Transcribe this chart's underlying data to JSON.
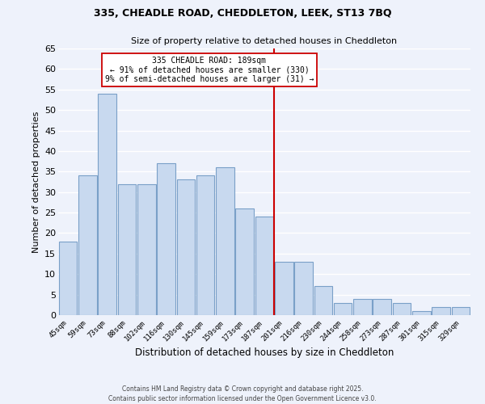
{
  "title1": "335, CHEADLE ROAD, CHEDDLETON, LEEK, ST13 7BQ",
  "title2": "Size of property relative to detached houses in Cheddleton",
  "xlabel": "Distribution of detached houses by size in Cheddleton",
  "ylabel": "Number of detached properties",
  "categories": [
    "45sqm",
    "59sqm",
    "73sqm",
    "88sqm",
    "102sqm",
    "116sqm",
    "130sqm",
    "145sqm",
    "159sqm",
    "173sqm",
    "187sqm",
    "201sqm",
    "216sqm",
    "230sqm",
    "244sqm",
    "258sqm",
    "273sqm",
    "287sqm",
    "301sqm",
    "315sqm",
    "329sqm"
  ],
  "values": [
    18,
    34,
    54,
    32,
    32,
    37,
    33,
    34,
    36,
    26,
    24,
    13,
    13,
    7,
    3,
    4,
    4,
    3,
    1,
    2,
    2
  ],
  "bar_color": "#c8d9ef",
  "bar_edge_color": "#7aa0c8",
  "bg_color": "#eef2fb",
  "grid_color": "#ffffff",
  "redline_x": 10.5,
  "annotation_line1": "335 CHEADLE ROAD: 189sqm",
  "annotation_line2": "← 91% of detached houses are smaller (330)",
  "annotation_line3": "9% of semi-detached houses are larger (31) →",
  "annotation_color": "#cc0000",
  "ylim": [
    0,
    65
  ],
  "yticks": [
    0,
    5,
    10,
    15,
    20,
    25,
    30,
    35,
    40,
    45,
    50,
    55,
    60,
    65
  ],
  "footer1": "Contains HM Land Registry data © Crown copyright and database right 2025.",
  "footer2": "Contains public sector information licensed under the Open Government Licence v3.0."
}
